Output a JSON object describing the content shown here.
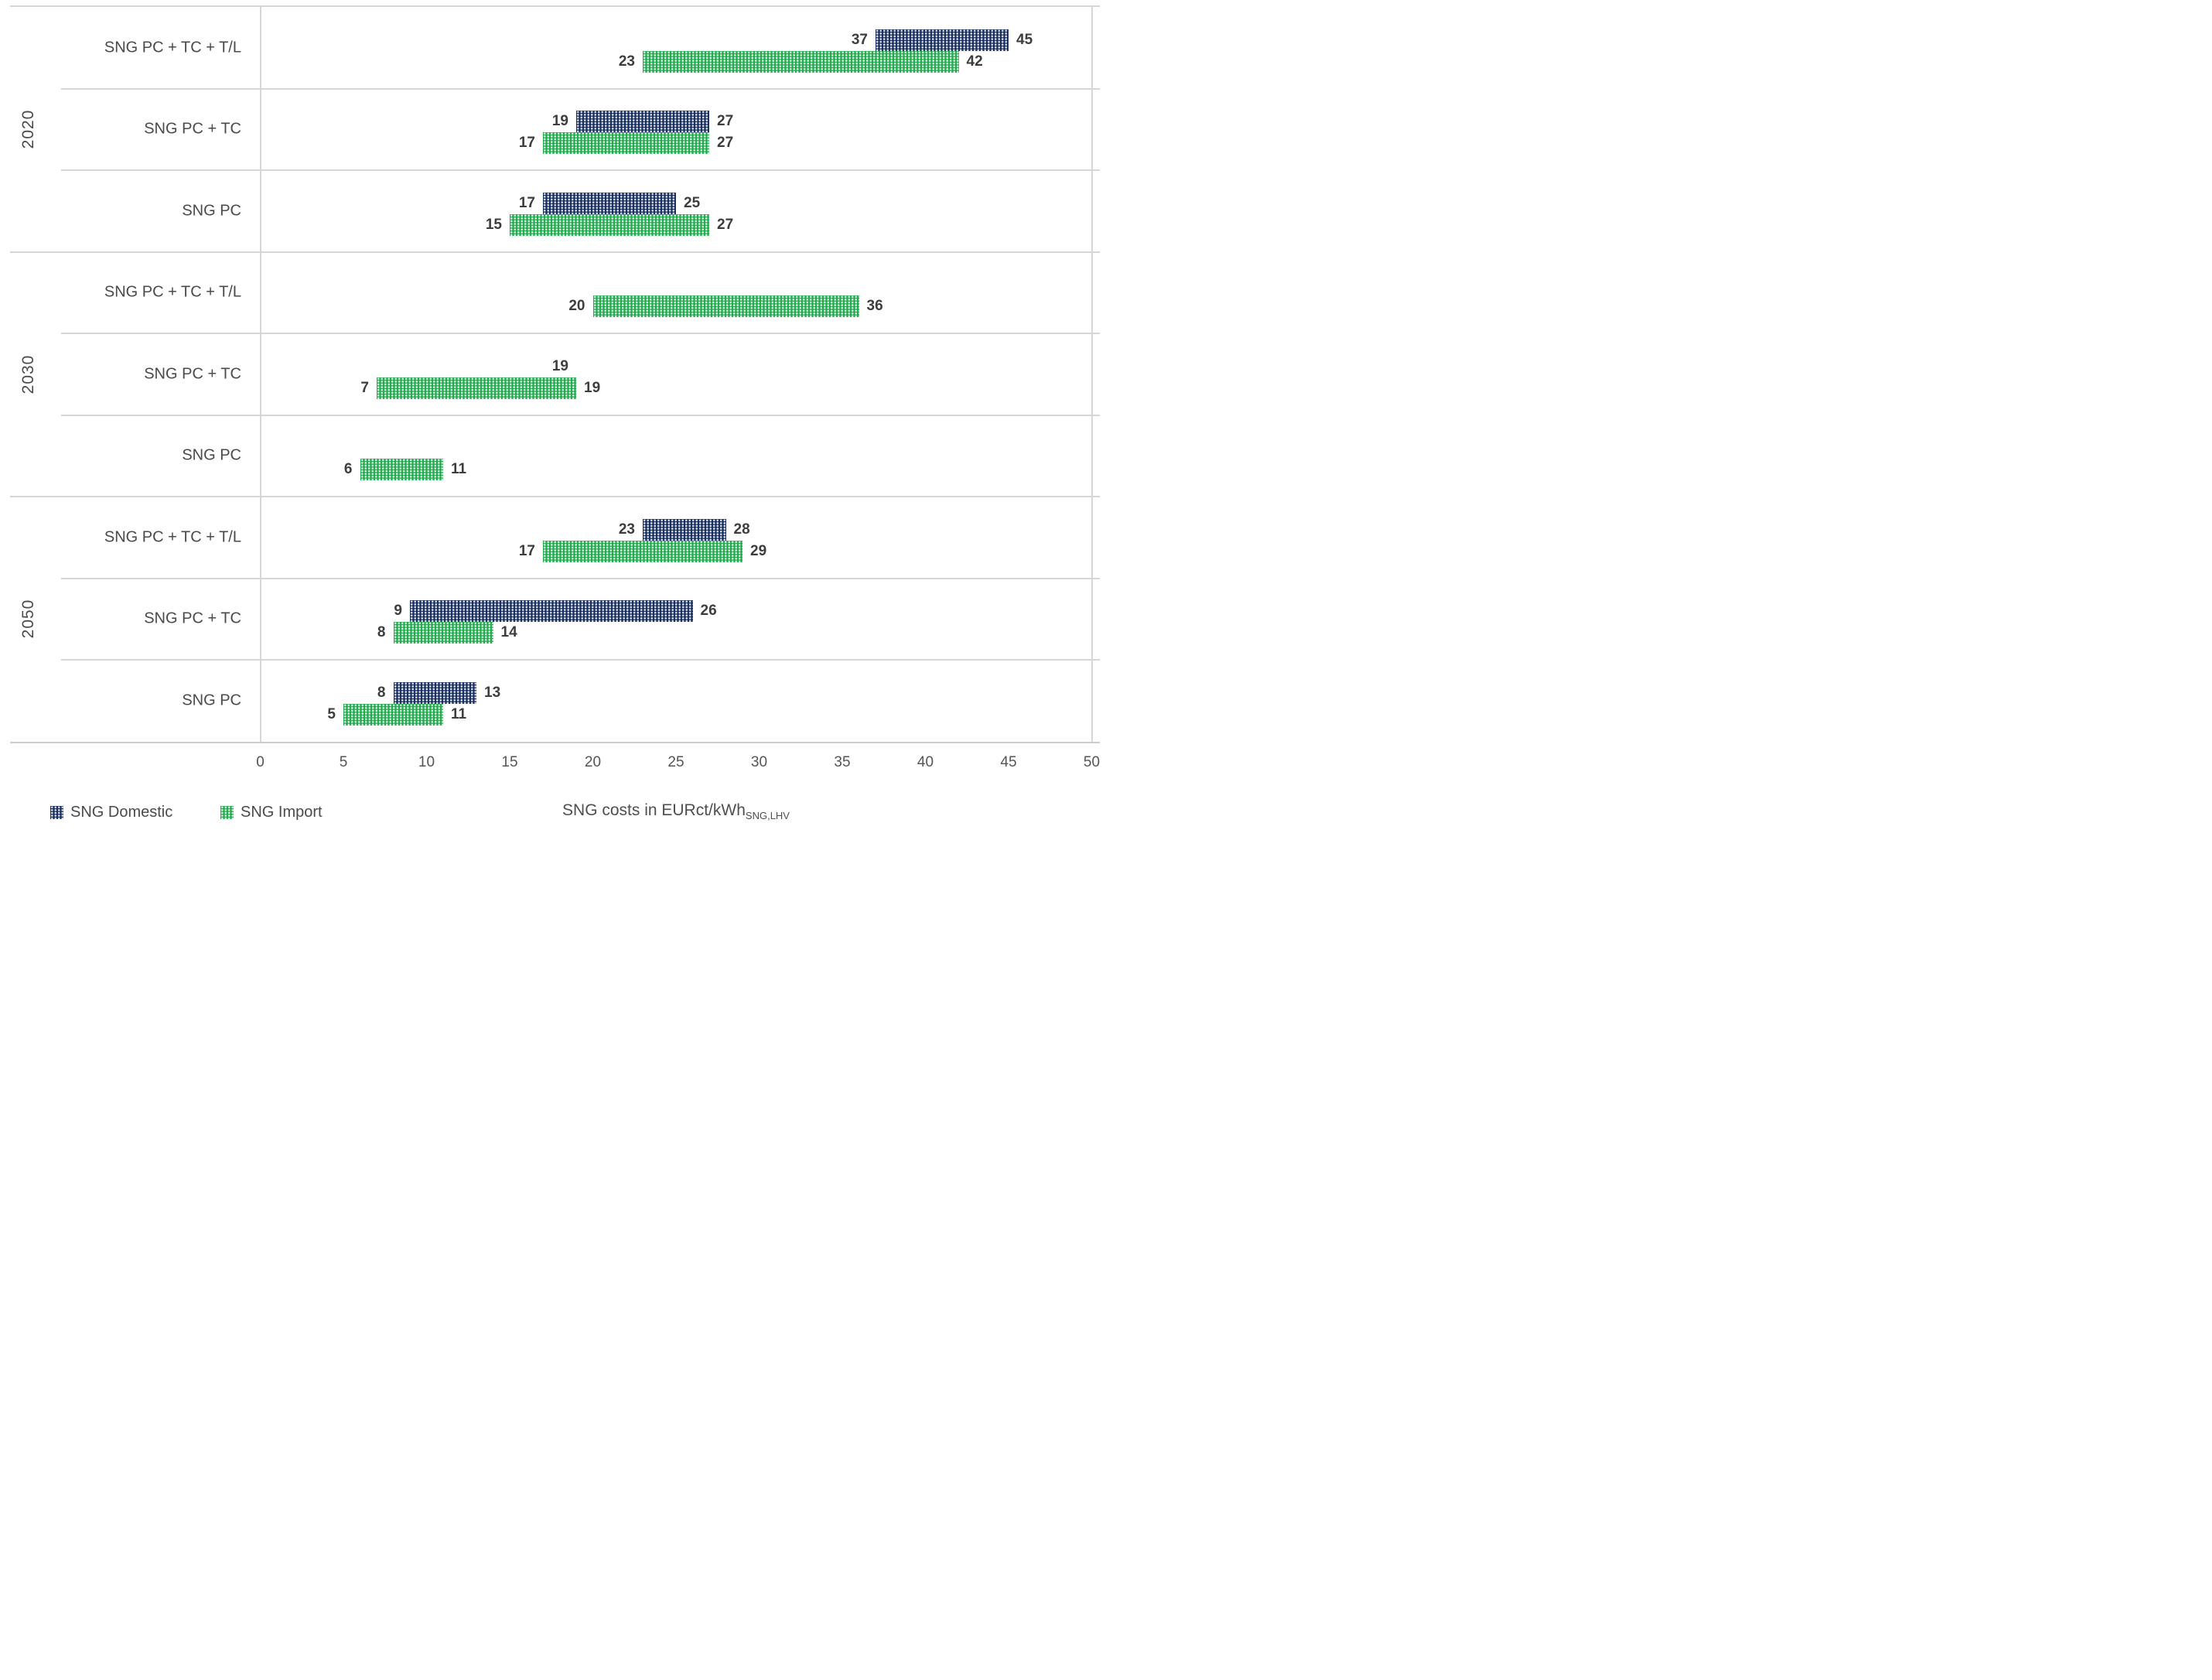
{
  "chart_data": {
    "type": "bar",
    "subtype": "horizontal-range-bars",
    "title": "",
    "xlabel": "SNG costs in EURct/kWh",
    "xlabel_subscript": "SNG,LHV",
    "x_axis": {
      "min": 0,
      "max": 50,
      "tick_step": 5,
      "ticks": [
        0,
        5,
        10,
        15,
        20,
        25,
        30,
        35,
        40,
        45,
        50
      ],
      "grid": "borders-only"
    },
    "legend_position": "bottom-left",
    "legend": [
      {
        "name": "SNG Domestic",
        "color": "#182f60"
      },
      {
        "name": "SNG Import",
        "color": "#21ab4e"
      }
    ],
    "groups": [
      {
        "year": "2020",
        "rows": [
          {
            "category": "SNG PC + TC + T/L",
            "domestic": {
              "min": 37,
              "max": 45
            },
            "import": {
              "min": 23,
              "max": 42
            }
          },
          {
            "category": "SNG PC + TC",
            "domestic": {
              "min": 19,
              "max": 27
            },
            "import": {
              "min": 17,
              "max": 27
            }
          },
          {
            "category": "SNG PC",
            "domestic": {
              "min": 17,
              "max": 25
            },
            "import": {
              "min": 15,
              "max": 27
            }
          }
        ]
      },
      {
        "year": "2030",
        "rows": [
          {
            "category": "SNG PC + TC + T/L",
            "domestic": null,
            "import": {
              "min": 20,
              "max": 36
            }
          },
          {
            "category": "SNG PC + TC",
            "domestic": {
              "min": 19,
              "max": 19
            },
            "import": {
              "min": 7,
              "max": 19
            }
          },
          {
            "category": "SNG PC",
            "domestic": null,
            "import": {
              "min": 6,
              "max": 11
            }
          }
        ]
      },
      {
        "year": "2050",
        "rows": [
          {
            "category": "SNG PC + TC + T/L",
            "domestic": {
              "min": 23,
              "max": 28
            },
            "import": {
              "min": 17,
              "max": 29
            }
          },
          {
            "category": "SNG PC + TC",
            "domestic": {
              "min": 9,
              "max": 26
            },
            "import": {
              "min": 8,
              "max": 14
            }
          },
          {
            "category": "SNG PC",
            "domestic": {
              "min": 8,
              "max": 13
            },
            "import": {
              "min": 5,
              "max": 11
            }
          }
        ]
      }
    ]
  },
  "colors": {
    "domestic_bar": "#182f60",
    "import_bar": "#21ab4e",
    "grid_line": "#d6d6d6",
    "axis_line": "#cccccc",
    "data_label": "#3d3d3d",
    "axis_text": "#555555",
    "category_text": "#4a4a4a"
  }
}
